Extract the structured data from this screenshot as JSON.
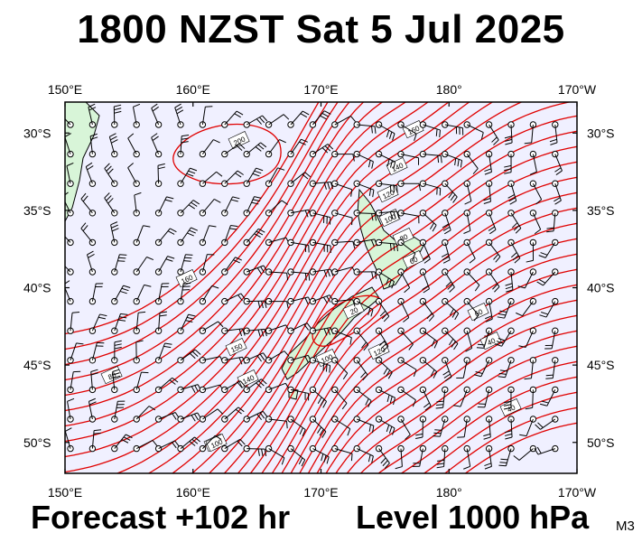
{
  "title": "1800 NZST Sat 5 Jul 2025",
  "footer": {
    "forecast": "Forecast +102 hr",
    "level": "Level 1000 hPa",
    "model": "M3"
  },
  "map": {
    "lon_range": [
      150,
      190
    ],
    "lat_range": [
      -28,
      -52
    ],
    "lon_labels": [
      "150°E",
      "160°E",
      "170°E",
      "180°",
      "170°W"
    ],
    "lat_labels": [
      "30°S",
      "35°S",
      "40°S",
      "45°S",
      "50°S"
    ],
    "contour_labels": [
      "200",
      "160",
      "140",
      "120",
      "100",
      "80",
      "60",
      "60",
      "40",
      "40",
      "20",
      "100",
      "120",
      "140",
      "150",
      "160",
      "80",
      "60",
      "100"
    ],
    "colors": {
      "ocean": "#f0f0ff",
      "land": "#d8f5d8",
      "contour": "#e00000",
      "wind": "#000000"
    }
  }
}
